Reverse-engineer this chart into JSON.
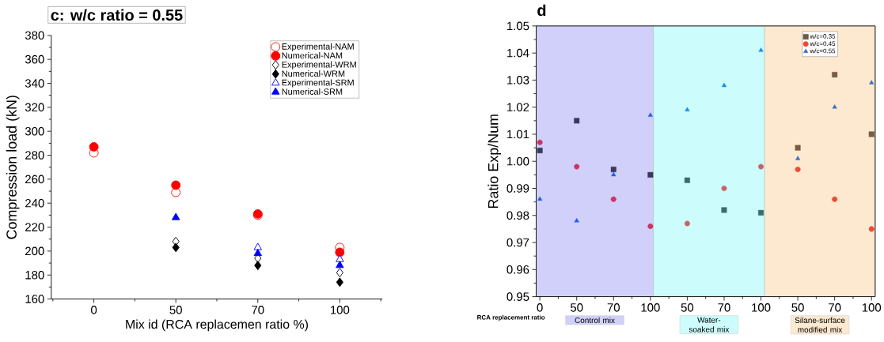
{
  "chart_data": [
    {
      "type": "scatter",
      "title": "c: w/c ratio = 0.55",
      "xlabel": "Mix id (RCA replacemen ratio %)",
      "ylabel": "Compression load (kN)",
      "categories": [
        "0",
        "50",
        "70",
        "100"
      ],
      "ylim": [
        160,
        380
      ],
      "yticks": [
        160,
        180,
        200,
        220,
        240,
        260,
        280,
        300,
        320,
        340,
        360,
        380
      ],
      "legend": "top right",
      "series": [
        {
          "name": "Experimental-NAM",
          "color": "#ff0000",
          "marker": "circle",
          "values": [
            282,
            249,
            230,
            203
          ]
        },
        {
          "name": "Numerical-NAM",
          "color": "#ff0000",
          "marker": "circle",
          "values": [
            287,
            255,
            231,
            199
          ]
        },
        {
          "name": "Experimental-WRM",
          "color": "#000000",
          "marker": "diamond",
          "values": [
            null,
            208,
            194,
            182
          ]
        },
        {
          "name": "Numerical-WRM",
          "color": "#000000",
          "marker": "diamond",
          "values": [
            null,
            203,
            188,
            174
          ]
        },
        {
          "name": "Experimental-SRM",
          "color": "#0000ff",
          "marker": "triangle",
          "values": [
            null,
            null,
            203,
            193
          ]
        },
        {
          "name": "Numerical-SRM",
          "color": "#0000ff",
          "marker": "triangle",
          "values": [
            null,
            228,
            198,
            188
          ]
        }
      ]
    },
    {
      "type": "scatter",
      "title": "d",
      "xlabel": "RCA replacement ratio",
      "ylabel": "Ratio Exp/Num",
      "categories": [
        "0",
        "50",
        "70",
        "100",
        "50",
        "70",
        "100",
        "50",
        "70",
        "100"
      ],
      "ylim": [
        0.95,
        1.05
      ],
      "yticks": [
        0.95,
        0.96,
        0.97,
        0.98,
        0.99,
        {
          "value": 1,
          "label": "1.00"
        },
        1.01,
        1.02,
        1.03,
        1.04,
        1.05
      ],
      "legend": "top right",
      "annotations": [
        "Control mix",
        "Water-soaked mix",
        "Silane-surface modified mix"
      ],
      "series": [
        {
          "name": "w/c=0.35",
          "color": "#6e5a40",
          "marker": "square",
          "colors": [
            "#3a3a5e",
            "#3a3a5e",
            "#3a3a5e",
            "#3a3a5e",
            "#3d6b6b",
            "#3d6b6b",
            "#3d6b6b",
            "#7a5c40",
            "#7a5c40",
            "#7a5c40"
          ],
          "values": [
            1.004,
            1.015,
            0.997,
            0.995,
            0.993,
            0.982,
            0.981,
            1.005,
            1.032,
            1.01
          ]
        },
        {
          "name": "w/c=0.45",
          "color": "#f04a32",
          "marker": "circle",
          "colors": [
            "#cc3366",
            "#cc3366",
            "#cc3366",
            "#cc3366",
            "#c86464",
            "#c86464",
            "#c86464",
            "#f04a32",
            "#f04a32",
            "#f04a32"
          ],
          "values": [
            1.007,
            0.998,
            0.986,
            0.976,
            0.977,
            0.99,
            0.998,
            0.997,
            0.986,
            0.975
          ]
        },
        {
          "name": "w/c=0.55",
          "color": "#3a6ec8",
          "marker": "triangle",
          "colors": [
            "#1a5ef0",
            "#1a5ef0",
            "#1a5ef0",
            "#1a5ef0",
            "#1a8ae8",
            "#1a8ae8",
            "#1a8ae8",
            "#3a6ec8",
            "#3a6ec8",
            "#3a6ec8"
          ],
          "values": [
            0.986,
            0.978,
            0.995,
            1.017,
            1.019,
            1.028,
            1.041,
            1.001,
            1.02,
            1.029
          ]
        }
      ]
    }
  ]
}
